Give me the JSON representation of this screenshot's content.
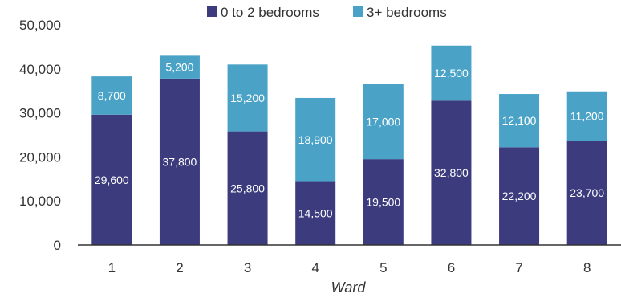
{
  "chart_data": {
    "type": "bar",
    "stacked": true,
    "categories": [
      "1",
      "2",
      "3",
      "4",
      "5",
      "6",
      "7",
      "8"
    ],
    "series": [
      {
        "name": "0 to 2 bedrooms",
        "color": "#3b3b7e",
        "values": [
          29600,
          37800,
          25800,
          14500,
          19500,
          32800,
          22200,
          23700
        ],
        "labels": [
          "29,600",
          "37,800",
          "25,800",
          "14,500",
          "19,500",
          "32,800",
          "22,200",
          "23,700"
        ]
      },
      {
        "name": "3+ bedrooms",
        "color": "#4aa3c6",
        "values": [
          8700,
          5200,
          15200,
          18900,
          17000,
          12500,
          12100,
          11200
        ],
        "labels": [
          "8,700",
          "5,200",
          "15,200",
          "18,900",
          "17,000",
          "12,500",
          "12,100",
          "11,200"
        ]
      }
    ],
    "title": "",
    "xlabel": "Ward",
    "ylabel": "",
    "ylim": [
      0,
      50000
    ],
    "yticks": [
      0,
      10000,
      20000,
      30000,
      40000,
      50000
    ],
    "ytick_labels": [
      "0",
      "10,000",
      "20,000",
      "30,000",
      "40,000",
      "50,000"
    ],
    "grid": false,
    "legend_position": "top"
  }
}
